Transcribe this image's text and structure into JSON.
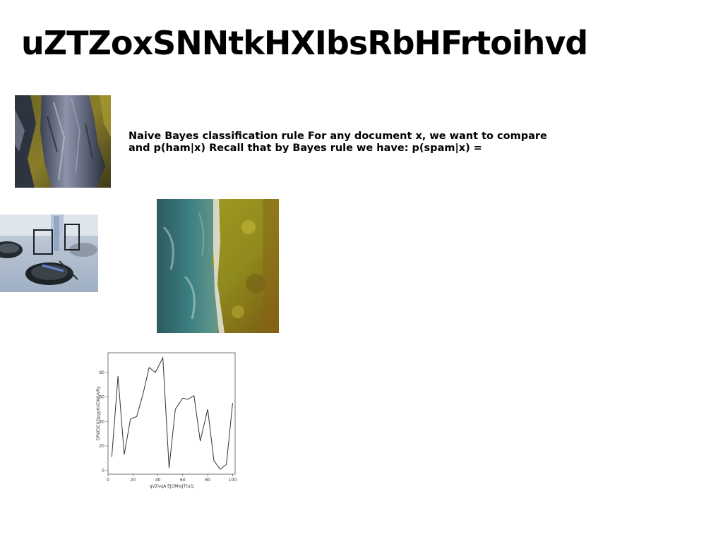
{
  "page": {
    "title": "uZTZoxSNNtkHXIbsRbHFrtoihvd",
    "body_text": "Naive Bayes classification rule For any document x, we want to compare and p(ham|x) Recall that by Bayes rule we have: p(spam|x) ="
  },
  "images": {
    "rock_photo": "rock-cliff-photo",
    "table_photo": "dining-table-photo",
    "aerial_photo": "aerial-coast-photo"
  },
  "chart_data": {
    "type": "line",
    "xlabel": "qVZvqA EjOMIoJTtuQ",
    "ylabel": "DFWDCXGpgyKsiDWVvRy",
    "xlim": [
      0,
      102
    ],
    "ylim": [
      -3,
      96
    ],
    "xticks": [
      0,
      20,
      40,
      60,
      80,
      100
    ],
    "yticks": [
      0,
      20,
      40,
      60,
      80
    ],
    "grid": false,
    "line_color": "#333333",
    "x": [
      3,
      8,
      13,
      18,
      23,
      28,
      33,
      38,
      44,
      49,
      54,
      60,
      64,
      69,
      74,
      80,
      85,
      90,
      95,
      100
    ],
    "y": [
      11,
      77,
      13,
      42,
      44,
      62,
      84,
      80,
      92,
      2,
      50,
      59,
      58,
      61,
      24,
      50,
      8,
      1,
      5,
      55
    ]
  }
}
